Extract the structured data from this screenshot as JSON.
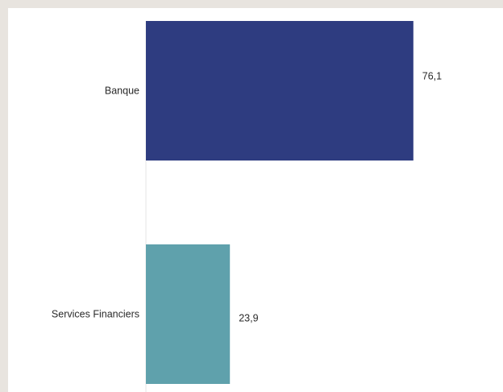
{
  "chart_data": {
    "type": "bar",
    "orientation": "horizontal",
    "categories": [
      "Banque",
      "Services Financiers"
    ],
    "values": [
      76.1,
      23.9
    ],
    "value_labels": [
      "76,1",
      "23,9"
    ],
    "colors": [
      "#2e3c80",
      "#5fa1ac"
    ],
    "title": "",
    "xlabel": "",
    "ylabel": "",
    "xlim": [
      0,
      100
    ],
    "grid": false,
    "legend": "none"
  }
}
